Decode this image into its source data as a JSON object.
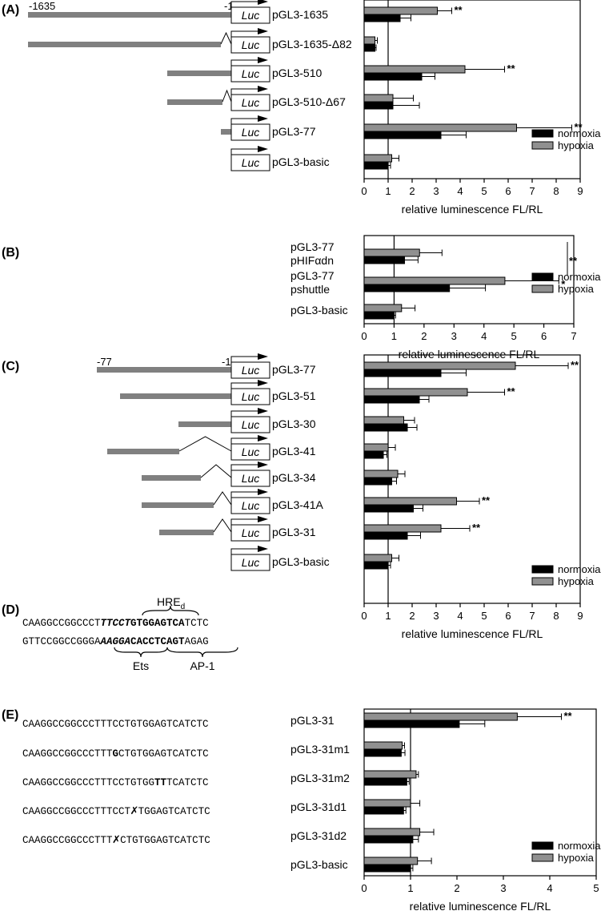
{
  "colors": {
    "normoxia": "#000000",
    "hypoxia": "#909090",
    "bar_outline": "#000000",
    "promoter": "#808080"
  },
  "panels": [
    {
      "label": "(A)",
      "xlabel": "relative luminescence FL/RL",
      "xlim": [
        0,
        9
      ],
      "coord_start": "-1635",
      "coord_end": "-1",
      "legend": {
        "normoxia": "normoxia",
        "hypoxia": "hypoxia"
      },
      "rows": [
        {
          "label": "pGL3-1635"
        },
        {
          "label": "pGL3-1635-Δ82"
        },
        {
          "label": "pGL3-510"
        },
        {
          "label": "pGL3-510-Δ67"
        },
        {
          "label": "pGL3-77"
        },
        {
          "label": "pGL3-basic"
        }
      ]
    },
    {
      "label": "(B)",
      "xlabel": "relative luminescence FL/RL",
      "xlim": [
        0,
        7
      ],
      "legend": {
        "normoxia": "normoxia",
        "hypoxia": "hypoxia"
      },
      "rows": [
        {
          "label": "pGL3-77",
          "label2": "pHIFαdn"
        },
        {
          "label": "pGL3-77",
          "label2": "pshuttle"
        },
        {
          "label": "pGL3-basic"
        }
      ],
      "bracket_sig": "**",
      "star_sig": "*"
    },
    {
      "label": "(C)",
      "xlabel": "relative luminescence FL/RL",
      "xlim": [
        0,
        9
      ],
      "coord_start": "-77",
      "coord_end": "-1",
      "legend": {
        "normoxia": "normoxia",
        "hypoxia": "hypoxia"
      },
      "rows": [
        {
          "label": "pGL3-77"
        },
        {
          "label": "pGL3-51"
        },
        {
          "label": "pGL3-30"
        },
        {
          "label": "pGL3-41"
        },
        {
          "label": "pGL3-34"
        },
        {
          "label": "pGL3-41A"
        },
        {
          "label": "pGL3-31"
        },
        {
          "label": "pGL3-basic"
        }
      ]
    },
    {
      "label": "(E)",
      "xlabel": "relative luminescence FL/RL",
      "xlim": [
        0,
        5
      ],
      "legend": {
        "normoxia": "normoxia",
        "hypoxia": "hypoxia"
      },
      "rows": [
        {
          "label": "pGL3-31"
        },
        {
          "label": "pGL3-31m1"
        },
        {
          "label": "pGL3-31m2"
        },
        {
          "label": "pGL3-31d1"
        },
        {
          "label": "pGL3-31d2"
        },
        {
          "label": "pGL3-basic"
        }
      ]
    }
  ],
  "luc_label": "Luc",
  "panel_d": {
    "label": "(D)",
    "hre": "HRE",
    "hre_sub": "d",
    "top": {
      "pre": "CAAGGCCGGCCCT",
      "bi": "TTCCT",
      "b": "GTGGAGTCA",
      "post": "TCTC"
    },
    "bottom": {
      "pre": "GTTCCGGCCGGGA",
      "bi": "AAGGA",
      "b": "CACCTCAGT",
      "post": "AGAG"
    },
    "ets": "Ets",
    "ap1": "AP-1"
  },
  "panel_e_seqs": [
    {
      "pre": "CAAGGCCGGCCCTTTCCTGTGGAGTCATCTC",
      "bold": "",
      "post": ""
    },
    {
      "pre": "CAAGGCCGGCCCTTT",
      "bold": "G",
      "post": "CTGTGGAGTCATCTC"
    },
    {
      "pre": "CAAGGCCGGCCCTTTCCTGTGG",
      "bold": "TT",
      "post": "TCATCTC"
    },
    {
      "pre": "CAAGGCCGGCCCTTTCCT",
      "bold": "✗",
      "post": "TGGAGTCATCTC"
    },
    {
      "pre": "CAAGGCCGGCCCTTT",
      "bold": "✗",
      "post": "CTGTGGAGTCATCTC"
    }
  ],
  "chart_data": [
    {
      "type": "bar",
      "orientation": "horizontal",
      "title": "(A)",
      "xlabel": "relative luminescence FL/RL",
      "xlim": [
        0,
        9
      ],
      "categories": [
        "pGL3-1635",
        "pGL3-1635-Δ82",
        "pGL3-510",
        "pGL3-510-Δ67",
        "pGL3-77",
        "pGL3-basic"
      ],
      "series": [
        {
          "name": "normoxia",
          "values": [
            1.5,
            0.45,
            2.4,
            1.2,
            3.2,
            1.0
          ],
          "errors": [
            0.45,
            0.05,
            0.55,
            1.1,
            1.05,
            0.1
          ]
        },
        {
          "name": "hypoxia",
          "values": [
            3.05,
            0.45,
            4.2,
            1.2,
            6.35,
            1.15
          ],
          "errors": [
            0.6,
            0.1,
            1.65,
            0.85,
            2.3,
            0.3
          ]
        }
      ],
      "significance": [
        "**",
        "",
        "**",
        "",
        "**",
        ""
      ],
      "reference_line": 1,
      "legend_position": "bottom-right"
    },
    {
      "type": "bar",
      "orientation": "horizontal",
      "title": "(B)",
      "xlabel": "relative luminescence FL/RL",
      "xlim": [
        0,
        7
      ],
      "categories": [
        "pGL3-77 pHIFαdn",
        "pGL3-77 pshuttle",
        "pGL3-basic"
      ],
      "series": [
        {
          "name": "normoxia",
          "values": [
            1.35,
            2.85,
            1.0
          ],
          "errors": [
            0.45,
            1.2,
            0.05
          ]
        },
        {
          "name": "hypoxia",
          "values": [
            1.85,
            4.7,
            1.25
          ],
          "errors": [
            0.75,
            1.8,
            0.45
          ]
        }
      ],
      "significance": [
        "**",
        "*",
        ""
      ],
      "reference_line": 1,
      "legend_position": "bottom-right"
    },
    {
      "type": "bar",
      "orientation": "horizontal",
      "title": "(C)",
      "xlabel": "relative luminescence FL/RL",
      "xlim": [
        0,
        9
      ],
      "categories": [
        "pGL3-77",
        "pGL3-51",
        "pGL3-30",
        "pGL3-41",
        "pGL3-34",
        "pGL3-41A",
        "pGL3-31",
        "pGL3-basic"
      ],
      "series": [
        {
          "name": "normoxia",
          "values": [
            3.2,
            2.3,
            1.8,
            0.8,
            1.15,
            2.05,
            1.8,
            1.0
          ],
          "errors": [
            1.05,
            0.4,
            0.4,
            0.15,
            0.2,
            0.4,
            0.55,
            0.1
          ]
        },
        {
          "name": "hypoxia",
          "values": [
            6.3,
            4.3,
            1.65,
            1.0,
            1.4,
            3.85,
            3.2,
            1.15
          ],
          "errors": [
            2.2,
            1.55,
            0.45,
            0.3,
            0.3,
            0.95,
            1.2,
            0.3
          ]
        }
      ],
      "significance": [
        "**",
        "**",
        "",
        "",
        "",
        "**",
        "**",
        ""
      ],
      "reference_line": 1,
      "legend_position": "bottom-right"
    },
    {
      "type": "bar",
      "orientation": "horizontal",
      "title": "(E)",
      "xlabel": "relative luminescence FL/RL",
      "xlim": [
        0,
        5
      ],
      "categories": [
        "pGL3-31",
        "pGL3-31m1",
        "pGL3-31m2",
        "pGL3-31d1",
        "pGL3-31d2",
        "pGL3-basic"
      ],
      "series": [
        {
          "name": "normoxia",
          "values": [
            2.05,
            0.8,
            0.92,
            0.85,
            1.05,
            1.0
          ],
          "errors": [
            0.55,
            0.08,
            0.05,
            0.05,
            0.12,
            0.05
          ]
        },
        {
          "name": "hypoxia",
          "values": [
            3.3,
            0.82,
            1.12,
            1.0,
            1.2,
            1.15
          ],
          "errors": [
            0.95,
            0.05,
            0.05,
            0.2,
            0.3,
            0.3
          ]
        }
      ],
      "significance": [
        "**",
        "",
        "",
        "",
        "",
        ""
      ],
      "reference_line": 1,
      "legend_position": "bottom-right"
    }
  ]
}
